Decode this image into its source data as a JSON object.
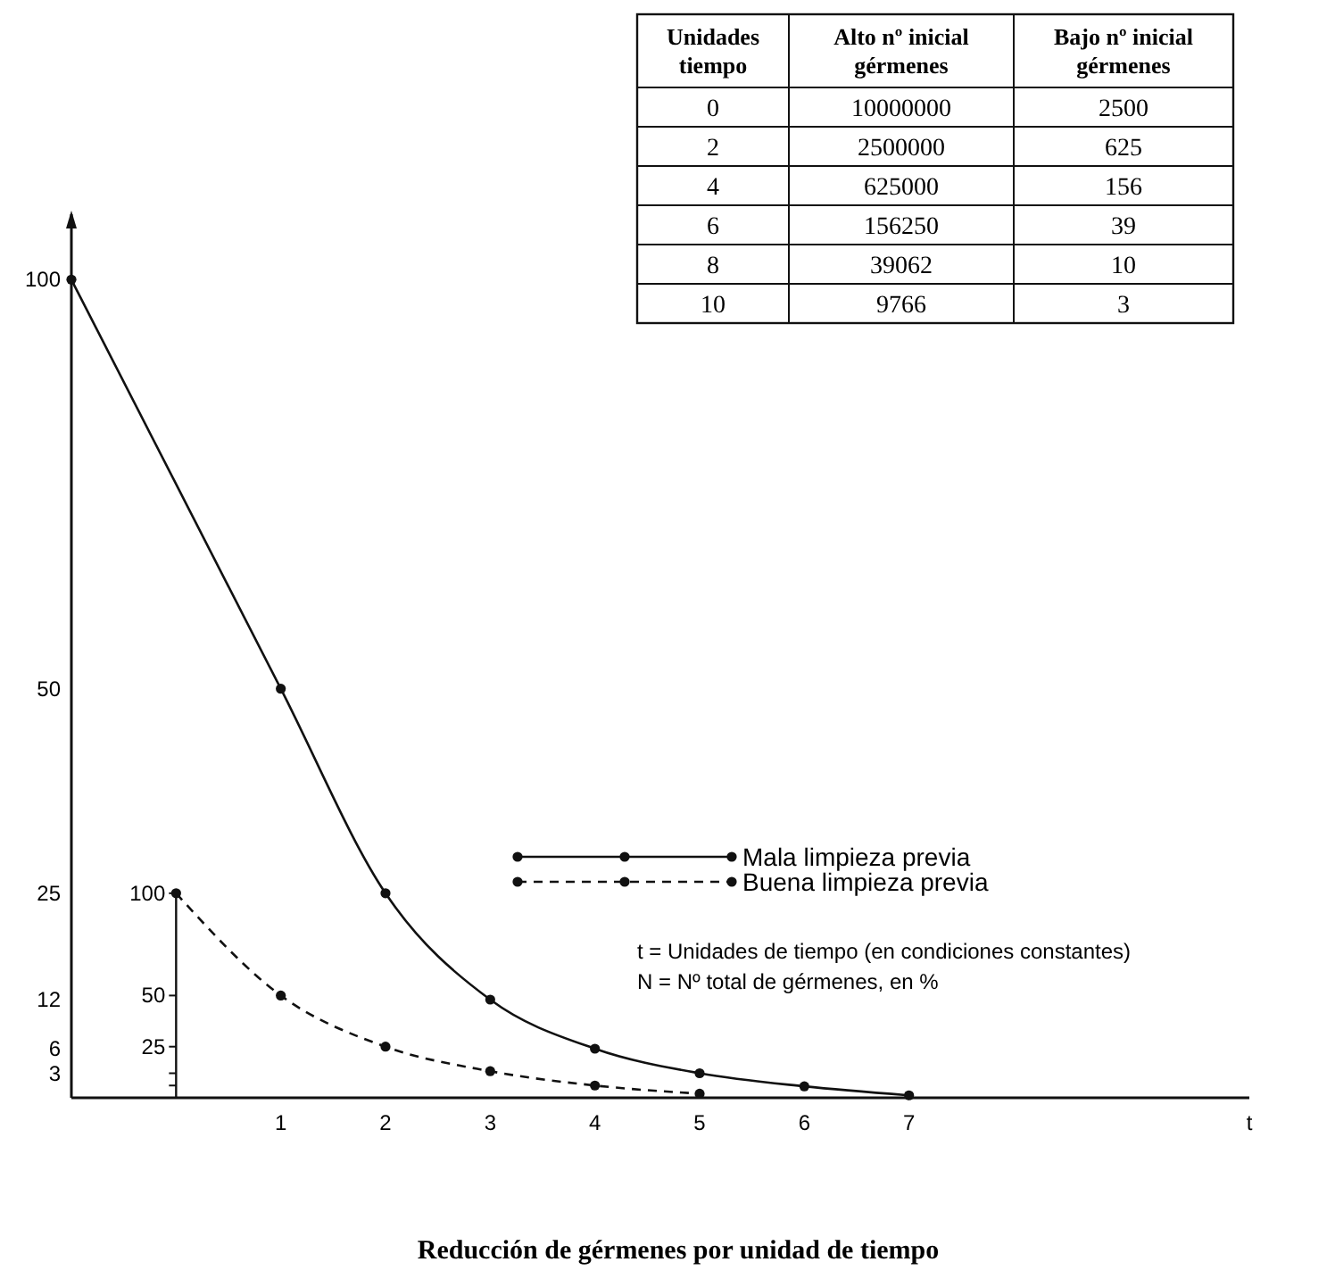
{
  "chart_data": [
    {
      "type": "line",
      "title": "Reducción de gérmenes por unidad de tiempo",
      "xlabel": "t",
      "xlim": [
        -1,
        10.25
      ],
      "xticks": [
        1,
        2,
        3,
        4,
        5,
        6,
        7
      ],
      "ylim": [
        0,
        108
      ],
      "yticks": [
        3,
        6,
        12,
        25,
        50,
        100
      ],
      "y2lim": [
        0,
        432
      ],
      "y2ticks": [
        {
          "value": 6,
          "label": null
        },
        {
          "value": 12,
          "label": null
        },
        25,
        50,
        100
      ],
      "grid": false,
      "legend": "right",
      "marker": "circle",
      "series": [
        {
          "name": "Mala limpieza previa",
          "color": "#111111",
          "line_style": "solid",
          "x": [
            -1,
            1,
            2,
            3,
            4,
            5,
            6,
            7
          ],
          "values": [
            100,
            50,
            25,
            12,
            6,
            3,
            1.4,
            0.3
          ]
        },
        {
          "name": "Buena limpieza previa",
          "color": "#111111",
          "line_style": "dashed",
          "axis": "y2",
          "x": [
            0,
            1,
            2,
            3,
            4,
            5
          ],
          "values": [
            100,
            50,
            25,
            13,
            6,
            2
          ]
        }
      ],
      "annotations": [
        "t = Unidades de tiempo (en condiciones constantes)",
        "N = Nº total de gérmenes, en %"
      ]
    },
    {
      "type": "heatmap",
      "ylabel": "Unidades tiempo",
      "categories": [
        "Alto nº inicial gérmenes",
        "Bajo nº inicial gérmenes"
      ],
      "y_categories": [
        "0",
        "2",
        "4",
        "6",
        "8",
        "10"
      ],
      "cells": [
        [
          10000000,
          2500
        ],
        [
          2500000,
          625
        ],
        [
          625000,
          156
        ],
        [
          156250,
          39
        ],
        [
          39062,
          10
        ],
        [
          9766,
          3
        ]
      ],
      "data_labels": true
    }
  ]
}
